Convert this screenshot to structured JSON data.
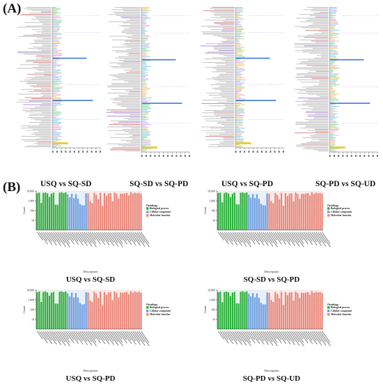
{
  "panel_a_label": "(A)",
  "panel_b_label": "(B)",
  "panel_a_titles": [
    "USQ vs SQ-SD",
    "SQ-SD vs SQ-PD",
    "USQ vs SQ-PD",
    "SQ-PD vs SQ-UD"
  ],
  "chart_data": [
    {
      "type": "bar",
      "title": "USQ vs SQ-SD",
      "ylabel": "Count",
      "xlabel": "Description",
      "ylim": [
        1,
        10000
      ],
      "y_scale": "log",
      "legend_title": "Ontology",
      "legend_position": "right",
      "series": [
        {
          "name": "Biological process",
          "color": "#2eaf3f",
          "values": [
            6000,
            7000,
            600,
            6500,
            7200,
            5800,
            2500,
            5500,
            6800,
            400,
            400,
            6800,
            7500,
            6200,
            7400
          ]
        },
        {
          "name": "Cellular component",
          "color": "#6f9fe0",
          "values": [
            4500,
            2200,
            5200,
            1800,
            4800,
            1700,
            500,
            350,
            350,
            6000
          ]
        },
        {
          "name": "Molecular function",
          "color": "#e9877a",
          "values": [
            5500,
            900,
            600,
            6500,
            4200,
            1500,
            6800,
            300,
            6300,
            3200,
            5600,
            6200,
            900,
            7000,
            5300,
            1700,
            5600,
            5200,
            5800,
            6400,
            3600,
            7600,
            5400,
            6800,
            5900,
            6600,
            5000
          ]
        }
      ]
    },
    {
      "type": "bar",
      "title": "SQ-SD vs SQ-PD",
      "ylabel": "Count",
      "xlabel": "Description",
      "ylim": [
        1,
        10000
      ],
      "y_scale": "log",
      "legend_title": "Ontology",
      "legend_position": "right",
      "series": [
        {
          "name": "Biological process",
          "color": "#2eaf3f",
          "values": [
            6200,
            6800,
            700,
            6400,
            7100,
            5600,
            2400,
            5300,
            6900,
            450,
            420,
            6700,
            7300,
            6000,
            7200
          ]
        },
        {
          "name": "Cellular component",
          "color": "#6f9fe0",
          "values": [
            4400,
            2100,
            5000,
            1900,
            4700,
            1600,
            520,
            360,
            340,
            5800
          ]
        },
        {
          "name": "Molecular function",
          "color": "#e9877a",
          "values": [
            5400,
            950,
            580,
            6300,
            4100,
            1400,
            6600,
            320,
            6100,
            3100,
            5500,
            6000,
            880,
            6900,
            5200,
            1650,
            5500,
            5100,
            5700,
            6300,
            3500,
            7400,
            5300,
            6700,
            5800,
            6500,
            4900
          ]
        }
      ]
    },
    {
      "type": "bar",
      "title": "USQ vs SQ-PD",
      "ylabel": "Count",
      "xlabel": "Description",
      "ylim": [
        1,
        10000
      ],
      "y_scale": "log",
      "legend_title": "Ontology",
      "legend_position": "right",
      "series": [
        {
          "name": "Biological process",
          "color": "#2eaf3f",
          "values": [
            5900,
            7100,
            620,
            6600,
            7300,
            5700,
            2600,
            5400,
            6700,
            420,
            410,
            6900,
            7400,
            6100,
            7300
          ]
        },
        {
          "name": "Cellular component",
          "color": "#6f9fe0",
          "values": [
            4600,
            2300,
            5300,
            1750,
            4900,
            1750,
            480,
            340,
            360,
            6100
          ]
        },
        {
          "name": "Molecular function",
          "color": "#e9877a",
          "values": [
            5600,
            880,
            620,
            6600,
            4300,
            1550,
            6900,
            290,
            6400,
            3300,
            5700,
            6300,
            920,
            7100,
            5400,
            1750,
            5700,
            5300,
            5900,
            6500,
            3700,
            7700,
            5500,
            6900,
            6000,
            6700,
            5100
          ]
        }
      ]
    },
    {
      "type": "bar",
      "title": "SQ-PD vs SQ-UD",
      "ylabel": "Count",
      "xlabel": "Description",
      "ylim": [
        1,
        10000
      ],
      "y_scale": "log",
      "legend_title": "Ontology",
      "legend_position": "right",
      "series": [
        {
          "name": "Biological process",
          "color": "#2eaf3f",
          "values": [
            6100,
            6900,
            580,
            6300,
            7000,
            5900,
            2450,
            5600,
            6600,
            440,
            430,
            6600,
            7600,
            6300,
            7500
          ]
        },
        {
          "name": "Cellular component",
          "color": "#6f9fe0",
          "values": [
            4300,
            2250,
            5100,
            1850,
            4600,
            1650,
            510,
            355,
            345,
            5900
          ]
        },
        {
          "name": "Molecular function",
          "color": "#e9877a",
          "values": [
            5300,
            920,
            610,
            6400,
            4000,
            1450,
            6700,
            310,
            6200,
            3000,
            5400,
            6100,
            870,
            6800,
            5100,
            1600,
            5400,
            5000,
            5600,
            6200,
            3400,
            7500,
            5200,
            6600,
            5700,
            6400,
            4800
          ]
        }
      ]
    }
  ]
}
